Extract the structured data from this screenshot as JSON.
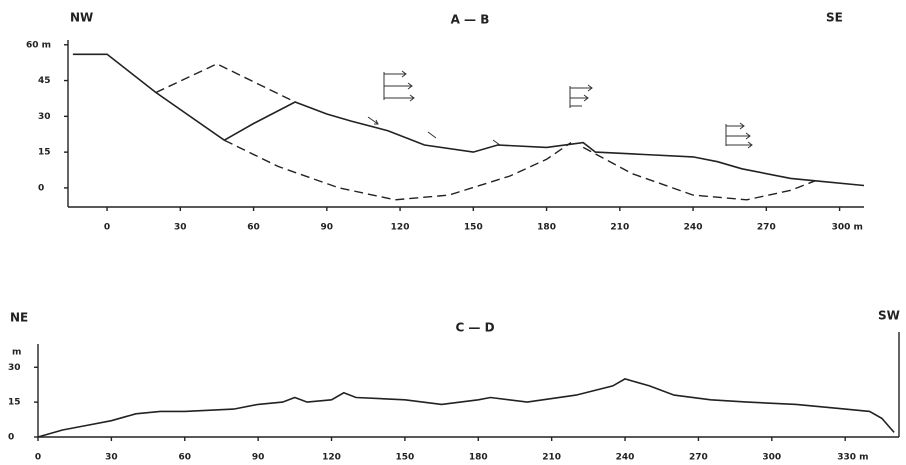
{
  "chart_data": [
    {
      "type": "line",
      "title": "A — B",
      "left_label": "NW",
      "right_label": "SE",
      "xlim": [
        -16,
        310
      ],
      "ylim": [
        -8,
        62
      ],
      "xticks": [
        0,
        30,
        60,
        90,
        120,
        150,
        180,
        210,
        240,
        270,
        {
          "value": 300,
          "label": "300 m"
        }
      ],
      "yticks": [
        0,
        15,
        30,
        45,
        {
          "value": 60,
          "label": "60 m"
        }
      ],
      "series": [
        {
          "color": "#222",
          "dash": false,
          "x": [
            -14,
            0,
            20,
            48,
            60,
            77,
            90,
            100,
            115,
            130,
            150,
            160,
            180,
            195,
            200,
            220,
            240,
            250,
            260,
            280,
            290,
            310
          ],
          "values": [
            56,
            56,
            40,
            20,
            27,
            36,
            31,
            28,
            24,
            18,
            15,
            18,
            17,
            19,
            15,
            14,
            13,
            11,
            8,
            4,
            3,
            1
          ]
        },
        {
          "color": "#222",
          "dash": true,
          "x": [
            20,
            45,
            77
          ],
          "values": [
            40,
            52,
            36
          ]
        },
        {
          "color": "#222",
          "dash": true,
          "x": [
            48,
            70,
            95,
            118,
            140,
            165,
            180,
            190
          ],
          "values": [
            20,
            9,
            0,
            -5,
            -3,
            5,
            12,
            19
          ]
        },
        {
          "color": "#222",
          "dash": true,
          "x": [
            195,
            215,
            240,
            262,
            280,
            290
          ],
          "values": [
            17,
            6,
            -3,
            -5,
            -1,
            3
          ]
        }
      ]
    },
    {
      "type": "line",
      "title": "C — D",
      "left_label": "NE",
      "right_label": "SW",
      "ylabel": "m",
      "xlim": [
        0,
        352
      ],
      "ylim": [
        0,
        40
      ],
      "xticks": [
        0,
        30,
        60,
        90,
        120,
        150,
        180,
        210,
        240,
        270,
        300,
        {
          "value": 330,
          "label": "330 m"
        }
      ],
      "yticks": [
        0,
        15,
        30
      ],
      "series": [
        {
          "color": "#222",
          "dash": false,
          "x": [
            0,
            10,
            20,
            30,
            40,
            50,
            60,
            80,
            90,
            100,
            105,
            110,
            120,
            125,
            130,
            150,
            165,
            180,
            185,
            200,
            220,
            235,
            240,
            250,
            260,
            275,
            290,
            310,
            330,
            340,
            345,
            350
          ],
          "values": [
            0,
            3,
            5,
            7,
            10,
            11,
            11,
            12,
            14,
            15,
            17,
            15,
            16,
            19,
            17,
            16,
            14,
            16,
            17,
            15,
            18,
            22,
            25,
            22,
            18,
            16,
            15,
            14,
            12,
            11,
            8,
            2
          ]
        }
      ]
    }
  ]
}
